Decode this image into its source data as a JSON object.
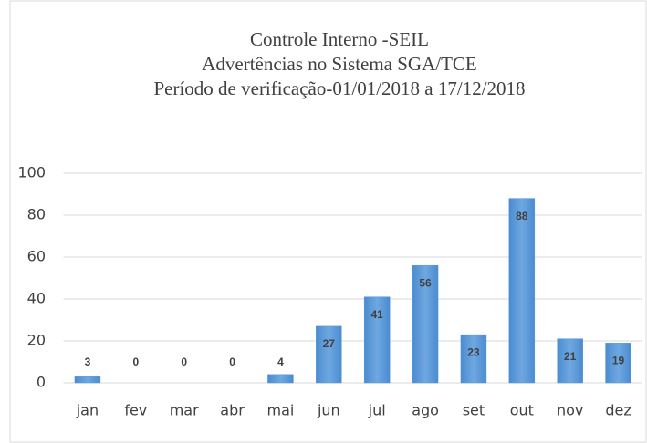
{
  "chart_data": {
    "type": "bar",
    "title": [
      "Controle Interno -SEIL",
      "Advertências no Sistema SGA/TCE",
      "Período de verificação-01/01/2018 a 17/12/2018"
    ],
    "categories": [
      "jan",
      "fev",
      "mar",
      "abr",
      "mai",
      "jun",
      "jul",
      "ago",
      "set",
      "out",
      "nov",
      "dez"
    ],
    "values": [
      3,
      0,
      0,
      0,
      4,
      27,
      41,
      56,
      23,
      88,
      21,
      19
    ],
    "color": "#5b9bd5",
    "ylim": [
      0,
      100
    ],
    "yticks": [
      0,
      20,
      40,
      60,
      80,
      100
    ],
    "grid": true
  }
}
